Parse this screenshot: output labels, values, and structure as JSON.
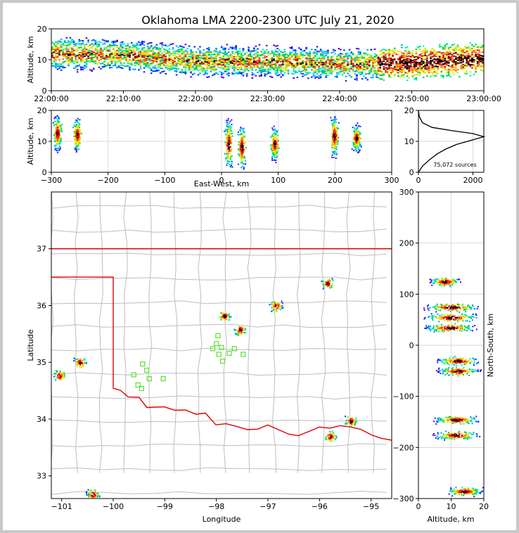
{
  "title": "Oklahoma LMA 2200-2300 UTC July 21, 2020",
  "colors": {
    "frame": "#c8c8c8",
    "state_border": "#e00000",
    "station": "#5be030",
    "county": "#bdbdbd"
  },
  "colormap": [
    "#5a00c8",
    "#0028ff",
    "#00a0ff",
    "#00e8d0",
    "#00d040",
    "#c8f000",
    "#ffd800",
    "#ff7800",
    "#ff1818",
    "#b40000",
    "#000000"
  ],
  "panels": {
    "time": {
      "ylabel": "Altitude, km",
      "yticks": [
        "0",
        "10",
        "20"
      ],
      "xticks": [
        "22:00:00",
        "22:10:00",
        "22:20:00",
        "22:30:00",
        "22:40:00",
        "22:50:00",
        "23:00:00"
      ]
    },
    "ew": {
      "ylabel": "Altitude, km",
      "xlabel": "East-West, km",
      "yticks": [
        "0",
        "10",
        "20"
      ],
      "xticks": [
        "−300",
        "−200",
        "−100",
        "0",
        "100",
        "200",
        "300"
      ]
    },
    "hist": {
      "yticks": [
        "0",
        "10",
        "20"
      ],
      "xticks": [
        "0",
        "2000"
      ],
      "annotation": "75,072 sources"
    },
    "map": {
      "xlabel": "Longitude",
      "ylabel": "Latitude",
      "xticks": [
        "−101",
        "−100",
        "−99",
        "−98",
        "−97",
        "−96",
        "−95"
      ],
      "yticks": [
        "33",
        "34",
        "35",
        "36",
        "37"
      ]
    },
    "ns": {
      "xlabel": "Altitude, km",
      "ylabel": "North-South, km",
      "xticks": [
        "0",
        "10",
        "20"
      ],
      "yticks": [
        "300",
        "200",
        "100",
        "0",
        "−100",
        "−200",
        "−300"
      ]
    }
  },
  "chart_data": [
    {
      "type": "heatmap",
      "panel": "altitude-vs-time",
      "xlabel": "",
      "ylabel": "Altitude, km",
      "xlim": [
        "22:00:00",
        "23:00:00"
      ],
      "ylim": [
        0,
        20
      ],
      "description_points": [
        {
          "t_min": 0,
          "alt_km": [
            6,
            18
          ]
        },
        {
          "t_min": 10,
          "alt_km": [
            6,
            17
          ]
        },
        {
          "t_min": 20,
          "alt_km": [
            4,
            15
          ]
        },
        {
          "t_min": 30,
          "alt_km": [
            4,
            15
          ]
        },
        {
          "t_min": 40,
          "alt_km": [
            3,
            14
          ]
        },
        {
          "t_min": 50,
          "alt_km": [
            3,
            15
          ]
        },
        {
          "t_min": 60,
          "alt_km": [
            5,
            16
          ]
        }
      ]
    },
    {
      "type": "heatmap",
      "panel": "altitude-vs-east-west",
      "xlabel": "East-West, km",
      "ylabel": "Altitude, km",
      "xlim": [
        -300,
        300
      ],
      "ylim": [
        0,
        20
      ],
      "clusters": [
        {
          "x_km": -290,
          "alt_km": [
            6,
            19
          ]
        },
        {
          "x_km": -255,
          "alt_km": [
            6,
            18
          ]
        },
        {
          "x_km": 12,
          "alt_km": [
            0,
            18
          ]
        },
        {
          "x_km": 35,
          "alt_km": [
            0,
            16
          ]
        },
        {
          "x_km": 93,
          "alt_km": [
            3,
            15
          ]
        },
        {
          "x_km": 198,
          "alt_km": [
            4,
            19
          ]
        },
        {
          "x_km": 237,
          "alt_km": [
            6,
            16
          ]
        }
      ]
    },
    {
      "type": "line",
      "panel": "altitude-histogram",
      "xlabel": "",
      "ylabel": "",
      "xlim": [
        0,
        2400
      ],
      "ylim": [
        0,
        20
      ],
      "x": [
        0,
        150,
        400,
        700,
        1000,
        1400,
        1800,
        2200,
        2400,
        2000,
        1200,
        500,
        150,
        30,
        0
      ],
      "y": [
        0,
        2,
        4,
        6,
        7.5,
        9,
        10,
        11,
        11.5,
        12.5,
        13.5,
        14.5,
        16,
        18,
        20
      ]
    },
    {
      "type": "scatter",
      "panel": "map",
      "xlabel": "Longitude",
      "ylabel": "Latitude",
      "xlim": [
        -101.2,
        -94.6
      ],
      "ylim": [
        32.6,
        38.0
      ],
      "sources": [
        {
          "lon": -101.05,
          "lat": 34.77
        },
        {
          "lon": -100.65,
          "lat": 35.0
        },
        {
          "lon": -97.85,
          "lat": 35.82
        },
        {
          "lon": -97.55,
          "lat": 35.58
        },
        {
          "lon": -96.85,
          "lat": 36.0
        },
        {
          "lon": -95.85,
          "lat": 36.4
        },
        {
          "lon": -95.8,
          "lat": 33.7
        },
        {
          "lon": -95.4,
          "lat": 33.97
        },
        {
          "lon": -100.4,
          "lat": 32.68
        }
      ],
      "stations": [
        {
          "lon": -97.97,
          "lat": 35.47
        },
        {
          "lon": -98.0,
          "lat": 35.33
        },
        {
          "lon": -97.9,
          "lat": 35.26
        },
        {
          "lon": -98.07,
          "lat": 35.24
        },
        {
          "lon": -97.65,
          "lat": 35.24
        },
        {
          "lon": -97.75,
          "lat": 35.16
        },
        {
          "lon": -97.48,
          "lat": 35.14
        },
        {
          "lon": -97.95,
          "lat": 35.14
        },
        {
          "lon": -97.88,
          "lat": 35.02
        },
        {
          "lon": -99.43,
          "lat": 34.97
        },
        {
          "lon": -99.35,
          "lat": 34.86
        },
        {
          "lon": -99.6,
          "lat": 34.78
        },
        {
          "lon": -99.3,
          "lat": 34.71
        },
        {
          "lon": -99.03,
          "lat": 34.71
        },
        {
          "lon": -99.52,
          "lat": 34.6
        },
        {
          "lon": -99.45,
          "lat": 34.54
        }
      ]
    },
    {
      "type": "heatmap",
      "panel": "north-south-vs-altitude",
      "xlabel": "Altitude, km",
      "ylabel": "North-South, km",
      "xlim": [
        0,
        20
      ],
      "ylim": [
        -300,
        300
      ],
      "clusters": [
        {
          "y_km": 125,
          "alt_km": [
            3,
            13
          ]
        },
        {
          "y_km": 75,
          "alt_km": [
            1,
            19
          ]
        },
        {
          "y_km": 55,
          "alt_km": [
            1,
            19
          ]
        },
        {
          "y_km": 35,
          "alt_km": [
            1,
            18
          ]
        },
        {
          "y_km": -30,
          "alt_km": [
            5,
            19
          ]
        },
        {
          "y_km": -50,
          "alt_km": [
            5,
            19
          ]
        },
        {
          "y_km": -145,
          "alt_km": [
            4,
            19
          ]
        },
        {
          "y_km": -175,
          "alt_km": [
            4,
            19
          ]
        },
        {
          "y_km": -285,
          "alt_km": [
            8,
            20
          ]
        }
      ]
    }
  ]
}
